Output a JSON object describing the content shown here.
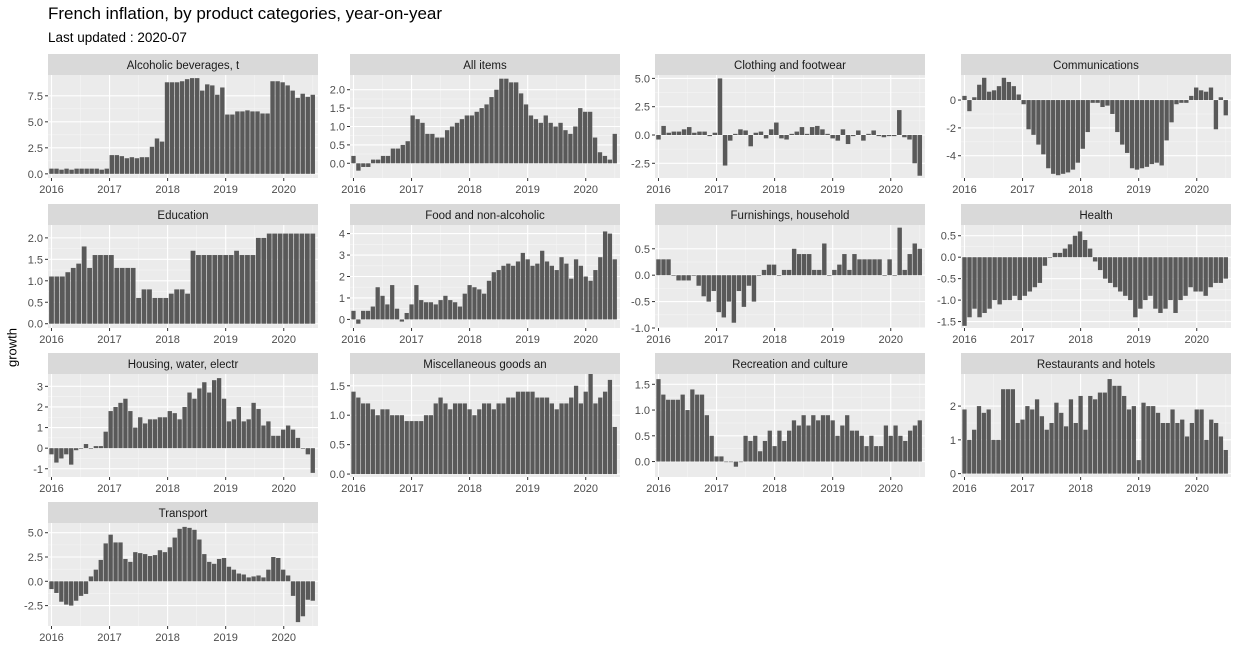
{
  "title": "French inflation, by product categories, year-on-year",
  "subtitle": "Last updated : 2020-07",
  "chart_data": {
    "type": "bar",
    "ylabel": "growth",
    "x_ticks": [
      "2016",
      "2017",
      "2018",
      "2019",
      "2020"
    ],
    "x_start_year": 2016,
    "x_end_year": 2020.5,
    "grid": true,
    "facets": [
      {
        "name": "Alcoholic beverages, t",
        "ylim": [
          -0.4,
          9.5
        ],
        "yticks": [
          0.0,
          2.5,
          5.0,
          7.5
        ],
        "ytick_labels": [
          "0.0",
          "2.5",
          "5.0",
          "7.5"
        ],
        "values": [
          0.5,
          0.5,
          0.4,
          0.5,
          0.4,
          0.5,
          0.5,
          0.5,
          0.5,
          0.5,
          0.4,
          0.5,
          1.8,
          1.8,
          1.7,
          1.5,
          1.6,
          1.5,
          1.6,
          1.6,
          2.6,
          3.4,
          3.1,
          8.8,
          8.8,
          8.8,
          8.9,
          9.1,
          9.2,
          9.2,
          8.0,
          8.6,
          8.5,
          7.6,
          8.3,
          5.7,
          5.7,
          6.0,
          6.0,
          6.1,
          6.0,
          6.0,
          5.8,
          5.8,
          8.9,
          8.9,
          8.8,
          8.5,
          8.0,
          7.3,
          7.7,
          7.4,
          7.6
        ]
      },
      {
        "name": "All items",
        "ylim": [
          -0.4,
          2.4
        ],
        "yticks": [
          0.0,
          0.5,
          1.0,
          1.5,
          2.0
        ],
        "ytick_labels": [
          "0.0",
          "0.5",
          "1.0",
          "1.5",
          "2.0"
        ],
        "values": [
          0.2,
          -0.2,
          -0.1,
          -0.1,
          0.1,
          0.1,
          0.2,
          0.2,
          0.4,
          0.4,
          0.5,
          0.6,
          1.3,
          1.2,
          1.1,
          0.8,
          0.8,
          0.7,
          0.7,
          0.9,
          1.0,
          1.1,
          1.2,
          1.3,
          1.3,
          1.4,
          1.5,
          1.6,
          1.8,
          2.0,
          2.3,
          2.3,
          2.2,
          2.2,
          1.9,
          1.6,
          1.3,
          1.2,
          1.1,
          1.3,
          1.1,
          1.0,
          1.1,
          0.9,
          0.8,
          1.0,
          1.5,
          1.4,
          1.4,
          0.7,
          0.3,
          0.2,
          0.1,
          0.8
        ]
      },
      {
        "name": "Clothing and footwear",
        "ylim": [
          -3.8,
          5.3
        ],
        "yticks": [
          -2.5,
          0.0,
          2.5,
          5.0
        ],
        "ytick_labels": [
          "-2.5",
          "0.0",
          "2.5",
          "5.0"
        ],
        "values": [
          -0.4,
          0.8,
          0.2,
          0.3,
          0.3,
          0.5,
          0.7,
          0.2,
          0.3,
          0.3,
          -0.1,
          0.2,
          5.0,
          -2.7,
          -0.5,
          0.1,
          0.5,
          0.4,
          -1.0,
          0.2,
          0.3,
          -0.3,
          0.5,
          1.1,
          -0.3,
          -0.4,
          0.1,
          0.3,
          0.7,
          0.1,
          0.7,
          0.8,
          0.5,
          0.1,
          -0.3,
          -0.5,
          0.5,
          -0.8,
          -0.1,
          0.4,
          -0.5,
          0.1,
          0.4,
          -0.1,
          -0.2,
          -0.1,
          -0.1,
          2.2,
          -0.2,
          -0.4,
          -2.5,
          -3.6
        ]
      },
      {
        "name": "Communications",
        "ylim": [
          -5.6,
          1.8
        ],
        "yticks": [
          -4,
          -2,
          0
        ],
        "ytick_labels": [
          "-4",
          "-2",
          "0"
        ],
        "values": [
          0.3,
          -0.8,
          0.2,
          1.1,
          1.6,
          0.6,
          0.7,
          1.0,
          1.6,
          1.3,
          1.0,
          0.4,
          -0.3,
          -2.1,
          -2.5,
          -3.2,
          -3.9,
          -4.9,
          -5.3,
          -5.4,
          -5.3,
          -5.2,
          -5.0,
          -4.5,
          -3.5,
          -2.3,
          -0.2,
          -0.2,
          -0.5,
          -0.4,
          -1.0,
          -2.3,
          -3.2,
          -3.8,
          -4.9,
          -5.0,
          -4.9,
          -4.8,
          -4.6,
          -4.5,
          -4.7,
          -2.9,
          -1.6,
          -0.3,
          -0.2,
          -0.2,
          0.3,
          0.9,
          0.7,
          0.6,
          0.9,
          -2.1,
          0.2,
          -1.1
        ]
      },
      {
        "name": "Education",
        "ylim": [
          -0.1,
          2.3
        ],
        "yticks": [
          0.0,
          0.5,
          1.0,
          1.5,
          2.0
        ],
        "ytick_labels": [
          "0.0",
          "0.5",
          "1.0",
          "1.5",
          "2.0"
        ],
        "values": [
          1.1,
          1.1,
          1.1,
          1.2,
          1.3,
          1.4,
          1.8,
          1.3,
          1.6,
          1.6,
          1.6,
          1.6,
          1.3,
          1.3,
          1.3,
          1.3,
          0.6,
          0.8,
          0.8,
          0.6,
          0.6,
          0.6,
          0.7,
          0.8,
          0.8,
          0.7,
          1.7,
          1.6,
          1.6,
          1.6,
          1.6,
          1.6,
          1.6,
          1.6,
          1.7,
          1.6,
          1.6,
          1.6,
          2.0,
          2.0,
          2.1,
          2.1,
          2.1,
          2.1,
          2.1,
          2.1,
          2.1,
          2.1,
          2.1
        ]
      },
      {
        "name": "Food and non-alcoholic",
        "ylim": [
          -0.4,
          4.4
        ],
        "yticks": [
          0,
          1,
          2,
          3,
          4
        ],
        "ytick_labels": [
          "0",
          "1",
          "2",
          "3",
          "4"
        ],
        "values": [
          0.4,
          -0.2,
          0.4,
          0.4,
          0.6,
          1.5,
          1.1,
          0.7,
          1.6,
          0.5,
          -0.1,
          0.3,
          0.7,
          1.6,
          0.9,
          0.8,
          0.8,
          0.7,
          0.9,
          1.1,
          0.9,
          0.8,
          0.6,
          1.2,
          1.6,
          1.5,
          1.4,
          1.2,
          1.8,
          2.2,
          2.3,
          2.5,
          2.6,
          2.5,
          2.7,
          3.1,
          2.8,
          2.5,
          2.6,
          3.2,
          2.7,
          2.5,
          2.3,
          2.9,
          2.6,
          1.9,
          2.8,
          2.5,
          2.0,
          1.8,
          2.3,
          2.9,
          4.1,
          4.0,
          2.8
        ]
      },
      {
        "name": "Furnishings, household",
        "ylim": [
          -1.0,
          0.95
        ],
        "yticks": [
          -1.0,
          -0.5,
          0.0,
          0.5
        ],
        "ytick_labels": [
          "-1.0",
          "-0.5",
          "0.0",
          "0.5"
        ],
        "values": [
          0.3,
          0.3,
          0.3,
          0.0,
          -0.1,
          -0.1,
          -0.1,
          0.0,
          -0.2,
          -0.4,
          -0.5,
          -0.3,
          -0.7,
          -0.8,
          -0.5,
          -0.9,
          -0.3,
          -0.6,
          -0.2,
          -0.5,
          0.0,
          0.1,
          0.2,
          0.2,
          0.0,
          0.1,
          0.1,
          0.5,
          0.4,
          0.4,
          0.4,
          0.1,
          0.1,
          0.6,
          0.0,
          0.1,
          0.2,
          0.4,
          0.1,
          0.4,
          0.3,
          0.3,
          0.3,
          0.3,
          0.3,
          0.0,
          0.3,
          0.0,
          0.9,
          0.1,
          0.4,
          0.6,
          0.5
        ]
      },
      {
        "name": "Health",
        "ylim": [
          -1.65,
          0.75
        ],
        "yticks": [
          -1.5,
          -1.0,
          -0.5,
          0.0,
          0.5
        ],
        "ytick_labels": [
          "-1.5",
          "-1.0",
          "-0.5",
          "0.0",
          "0.5"
        ],
        "values": [
          -1.6,
          -1.4,
          -1.2,
          -1.4,
          -1.3,
          -1.2,
          -1.0,
          -1.1,
          -1.0,
          -1.0,
          -0.9,
          -1.0,
          -0.9,
          -0.8,
          -0.7,
          -0.6,
          -0.2,
          0.0,
          0.1,
          0.1,
          0.2,
          0.3,
          0.5,
          0.6,
          0.4,
          0.2,
          -0.1,
          -0.3,
          -0.5,
          -0.6,
          -0.7,
          -0.8,
          -0.9,
          -1.0,
          -1.4,
          -1.2,
          -1.0,
          -0.9,
          -1.2,
          -1.3,
          -1.2,
          -1.0,
          -1.3,
          -1.0,
          -0.9,
          -0.7,
          -0.8,
          -0.8,
          -0.9,
          -0.7,
          -0.6,
          -0.6,
          -0.5
        ]
      },
      {
        "name": "Housing, water, electr",
        "ylim": [
          -1.4,
          3.6
        ],
        "yticks": [
          -1,
          0,
          1,
          2,
          3
        ],
        "ytick_labels": [
          "-1",
          "0",
          "1",
          "2",
          "3"
        ],
        "values": [
          -0.3,
          -0.7,
          -0.5,
          -0.3,
          -0.8,
          -0.1,
          0.0,
          0.2,
          0.0,
          0.1,
          0.1,
          0.8,
          1.8,
          2.0,
          2.2,
          2.4,
          1.8,
          1.0,
          1.5,
          1.2,
          1.4,
          1.4,
          1.5,
          1.5,
          1.8,
          1.7,
          1.4,
          2.0,
          2.7,
          2.4,
          2.9,
          3.2,
          2.7,
          3.3,
          3.4,
          2.4,
          1.3,
          1.4,
          2.0,
          1.3,
          1.4,
          2.2,
          1.9,
          1.1,
          1.3,
          0.6,
          0.6,
          0.9,
          1.1,
          0.9,
          0.5,
          0.0,
          -0.3,
          -1.2
        ]
      },
      {
        "name": "Miscellaneous goods an",
        "ylim": [
          -0.05,
          1.7
        ],
        "yticks": [
          0.0,
          0.5,
          1.0,
          1.5
        ],
        "ytick_labels": [
          "0.0",
          "0.5",
          "1.0",
          "1.5"
        ],
        "values": [
          1.4,
          1.3,
          1.2,
          1.2,
          1.1,
          1.0,
          1.1,
          1.1,
          1.0,
          1.0,
          1.0,
          0.9,
          0.9,
          0.9,
          0.9,
          1.0,
          1.0,
          1.2,
          1.3,
          1.2,
          1.1,
          1.2,
          1.2,
          1.2,
          1.1,
          1.0,
          1.1,
          1.2,
          1.2,
          1.1,
          1.2,
          1.2,
          1.3,
          1.3,
          1.4,
          1.4,
          1.4,
          1.4,
          1.3,
          1.3,
          1.3,
          1.2,
          1.1,
          1.2,
          1.2,
          1.3,
          1.5,
          1.2,
          1.4,
          1.7,
          1.2,
          1.3,
          1.4,
          1.6,
          0.8
        ]
      },
      {
        "name": "Recreation and culture",
        "ylim": [
          -0.3,
          1.7
        ],
        "yticks": [
          0.0,
          0.5,
          1.0,
          1.5
        ],
        "ytick_labels": [
          "0.0",
          "0.5",
          "1.0",
          "1.5"
        ],
        "values": [
          1.6,
          1.3,
          1.2,
          1.2,
          1.2,
          1.3,
          1.0,
          1.4,
          1.3,
          1.3,
          0.9,
          0.5,
          0.1,
          0.1,
          0.0,
          0.0,
          -0.1,
          0.0,
          0.5,
          0.4,
          0.5,
          0.2,
          0.4,
          0.6,
          0.3,
          0.6,
          0.4,
          0.6,
          0.8,
          0.7,
          0.9,
          0.7,
          0.9,
          0.8,
          0.9,
          0.9,
          0.8,
          0.5,
          0.7,
          0.9,
          0.6,
          0.6,
          0.5,
          0.3,
          0.5,
          0.3,
          0.3,
          0.7,
          0.5,
          0.7,
          0.5,
          0.4,
          0.6,
          0.7,
          0.8
        ]
      },
      {
        "name": "Restaurants and hotels",
        "ylim": [
          -0.1,
          2.95
        ],
        "yticks": [
          0,
          1,
          2
        ],
        "ytick_labels": [
          "0",
          "1",
          "2"
        ],
        "values": [
          1.9,
          1.0,
          1.3,
          2.0,
          1.8,
          1.9,
          1.0,
          1.0,
          2.5,
          2.5,
          2.5,
          1.5,
          1.6,
          2.0,
          1.9,
          2.2,
          1.7,
          1.3,
          1.5,
          2.1,
          1.8,
          1.4,
          2.2,
          1.5,
          2.3,
          1.3,
          2.3,
          2.2,
          2.4,
          2.4,
          2.8,
          2.6,
          2.6,
          2.3,
          1.9,
          2.0,
          0.4,
          2.1,
          2.0,
          2.0,
          1.8,
          1.5,
          1.5,
          1.9,
          1.5,
          1.6,
          1.1,
          1.5,
          1.9,
          1.9,
          1.0,
          1.6,
          1.5,
          1.1,
          0.7
        ]
      },
      {
        "name": "Transport",
        "ylim": [
          -4.6,
          6.0
        ],
        "yticks": [
          -2.5,
          0.0,
          2.5,
          5.0
        ],
        "ytick_labels": [
          "-2.5",
          "0.0",
          "2.5",
          "5.0"
        ],
        "values": [
          -0.8,
          -1.2,
          -2.1,
          -2.4,
          -2.5,
          -2.0,
          -1.5,
          -1.3,
          0.5,
          1.2,
          2.2,
          3.9,
          4.8,
          4.0,
          4.0,
          2.3,
          2.0,
          3.0,
          2.9,
          2.8,
          2.6,
          2.7,
          3.2,
          3.0,
          3.5,
          4.5,
          5.4,
          5.6,
          5.5,
          5.3,
          4.3,
          2.8,
          2.0,
          1.8,
          2.3,
          2.4,
          1.5,
          1.2,
          0.8,
          0.7,
          0.4,
          0.5,
          0.6,
          0.4,
          1.2,
          2.5,
          2.4,
          1.2,
          0.6,
          -1.5,
          -4.2,
          -3.6,
          -1.9,
          -2.0
        ]
      }
    ]
  }
}
